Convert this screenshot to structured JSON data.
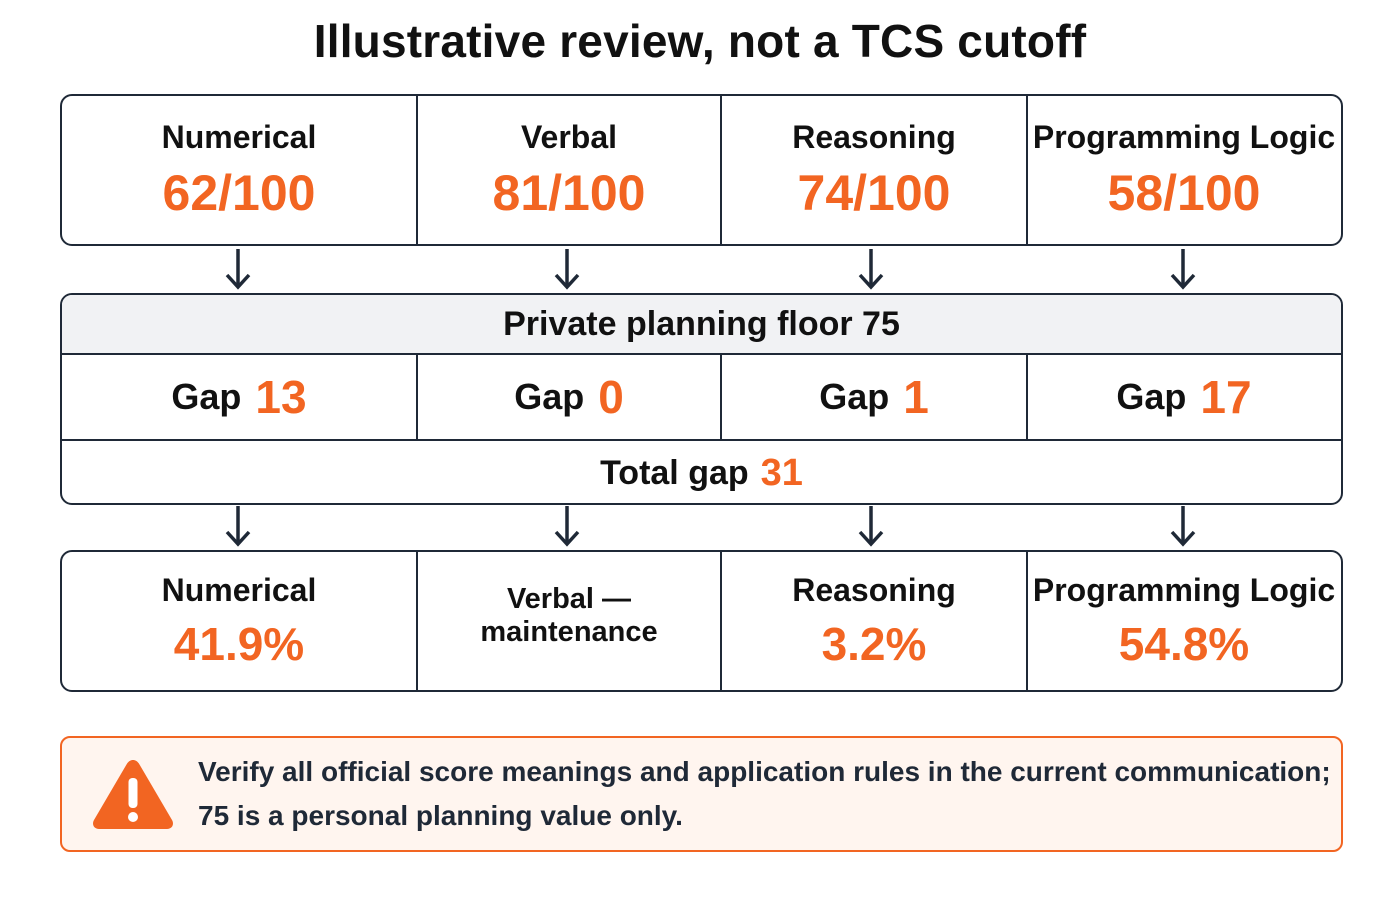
{
  "title": "Illustrative review, not a TCS cutoff",
  "colors": {
    "accent": "#f26522",
    "border": "#1f2937",
    "header_bg": "#f1f2f4",
    "warning_bg": "#fff5ef"
  },
  "sections": [
    {
      "name": "Numerical",
      "score": "62/100",
      "gap_label": "Gap",
      "gap": "13",
      "share_label": "Numerical",
      "share": "41.9%"
    },
    {
      "name": "Verbal",
      "score": "81/100",
      "gap_label": "Gap",
      "gap": "0",
      "share_label": "Verbal — maintenance",
      "share": ""
    },
    {
      "name": "Reasoning",
      "score": "74/100",
      "gap_label": "Gap",
      "gap": "1",
      "share_label": "Reasoning",
      "share": "3.2%"
    },
    {
      "name": "Programming Logic",
      "score": "58/100",
      "gap_label": "Gap",
      "gap": "17",
      "share_label": "Programming Logic",
      "share": "54.8%"
    }
  ],
  "floor": {
    "label": "Private planning floor 75"
  },
  "total": {
    "label": "Total gap",
    "value": "31"
  },
  "warning": {
    "icon": "warning-triangle-icon",
    "line1": "Verify all official score meanings and application rules in the current communication;",
    "line2": "75 is a personal planning value only."
  }
}
